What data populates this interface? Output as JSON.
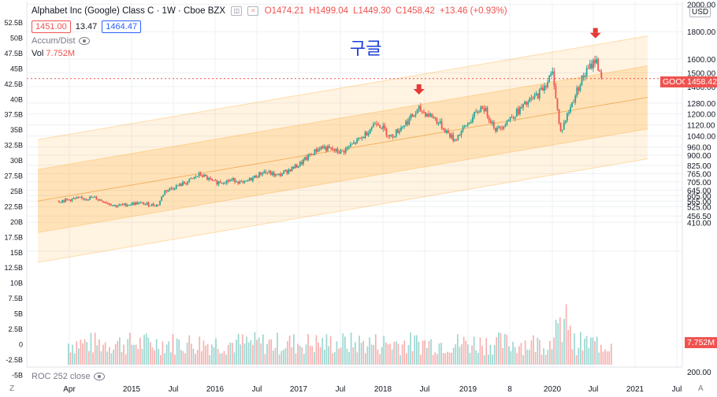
{
  "header": {
    "title": "Alphabet Inc (Google) Class C · 1W · Cboe BZX",
    "ohlc": {
      "o": "O1474.21",
      "h": "H1499.04",
      "l": "L1449.30",
      "c": "C1458.42",
      "chg": "+13.46 (+0.93%)"
    },
    "bid": "1451.00",
    "spread": "13.47",
    "ask": "1464.47"
  },
  "indicators": {
    "accum": "Accum/Dist",
    "vol_label": "Vol",
    "vol_value": "7.752M",
    "roc": "ROC 252 close"
  },
  "annotation_text": "구글",
  "price_axis": {
    "currency": "USD"
  },
  "badges": {
    "symbol": "GOOG",
    "price": "1458.42",
    "volume": "7.752M"
  },
  "corners": {
    "left": "Z",
    "right": "A"
  },
  "colors": {
    "up": "#26a69a",
    "down": "#ef5350",
    "channel": "#ffa726",
    "arrow": "#e53935",
    "badge": "#ef5350"
  },
  "chart_data": {
    "type": "candlestick",
    "timeframe": "1W",
    "x_ticks": [
      "Apr",
      "2015",
      "Jul",
      "2016",
      "Jul",
      "2017",
      "Jul",
      "2018",
      "Jul",
      "2019",
      "8",
      "2020",
      "Jul",
      "2021",
      "Jul"
    ],
    "right_axis_ticks": [
      "2000.00",
      "1800.00",
      "1600.00",
      "1500.00",
      "1400.00",
      "1280.00",
      "1200.00",
      "1120.00",
      "1040.00",
      "960.00",
      "900.00",
      "825.00",
      "765.00",
      "705.00",
      "645.00",
      "605.00",
      "565.00",
      "525.00",
      "456.50",
      "410.00",
      "200.00"
    ],
    "left_axis_ticks": [
      "52.5B",
      "50B",
      "47.5B",
      "45B",
      "42.5B",
      "40B",
      "37.5B",
      "35B",
      "32.5B",
      "30B",
      "27.5B",
      "25B",
      "22.5B",
      "20B",
      "17.5B",
      "15B",
      "12.5B",
      "10B",
      "7.5B",
      "5B",
      "2.5B",
      "0",
      "-2.5B",
      "-5B"
    ],
    "price_path": [
      [
        "2014-04",
        565
      ],
      [
        "2014-06",
        580
      ],
      [
        "2014-09",
        590
      ],
      [
        "2014-12",
        530
      ],
      [
        "2015-03",
        550
      ],
      [
        "2015-06",
        535
      ],
      [
        "2015-07",
        640
      ],
      [
        "2015-10",
        700
      ],
      [
        "2015-12",
        760
      ],
      [
        "2016-02",
        700
      ],
      [
        "2016-05",
        720
      ],
      [
        "2016-06",
        690
      ],
      [
        "2016-09",
        780
      ],
      [
        "2016-11",
        750
      ],
      [
        "2017-02",
        830
      ],
      [
        "2017-05",
        960
      ],
      [
        "2017-08",
        920
      ],
      [
        "2017-11",
        1030
      ],
      [
        "2018-01",
        1150
      ],
      [
        "2018-03",
        1030
      ],
      [
        "2018-07",
        1230
      ],
      [
        "2018-09",
        1180
      ],
      [
        "2018-12",
        1010
      ],
      [
        "2019-04",
        1260
      ],
      [
        "2019-06",
        1080
      ],
      [
        "2019-09",
        1220
      ],
      [
        "2019-12",
        1350
      ],
      [
        "2020-02",
        1500
      ],
      [
        "2020-03",
        1060
      ],
      [
        "2020-06",
        1450
      ],
      [
        "2020-08",
        1600
      ],
      [
        "2020-09",
        1458
      ]
    ],
    "marked_peaks": [
      [
        "2018-07",
        1290
      ],
      [
        "2020-08",
        1700
      ]
    ],
    "last_price": 1458.42,
    "last_volume": "7.752M"
  }
}
